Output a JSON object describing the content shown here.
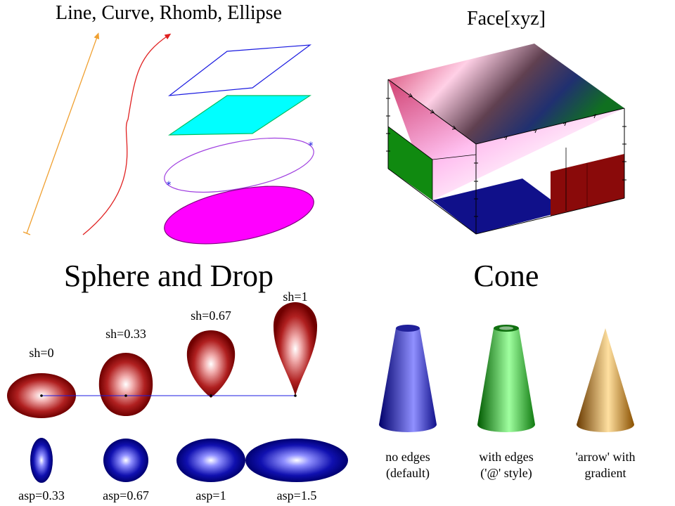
{
  "panels": {
    "tl": {
      "title": "Line, Curve, Rhomb, Ellipse"
    },
    "tr": {
      "title": "Face[xyz]"
    },
    "bl": {
      "title": "Sphere and Drop",
      "drop_labels": [
        "sh=0",
        "sh=0.33",
        "sh=0.67",
        "sh=1"
      ],
      "sphere_labels": [
        "asp=0.33",
        "asp=0.67",
        "asp=1",
        "asp=1.5"
      ]
    },
    "br": {
      "title": "Cone",
      "labels": [
        {
          "line1": "no edges",
          "line2": "(default)"
        },
        {
          "line1": "with edges",
          "line2": "('@' style)"
        },
        {
          "line1": "'arrow' with",
          "line2": "gradient"
        }
      ]
    }
  },
  "colors": {
    "line": "#f0a030",
    "curve": "#e02020",
    "rhomb_outline": "#1a1ae0",
    "rhomb_fill": "#00ffff",
    "rhomb_edge": "#00c060",
    "ellipse_outline": "#a040e0",
    "ellipse_fill": "#ff00ff",
    "drop": "#8b0000",
    "sphere": "#000090",
    "cone_blue": "#0a0a90",
    "cone_green": "#0a8a0a",
    "cone_gold": "#b07010"
  }
}
